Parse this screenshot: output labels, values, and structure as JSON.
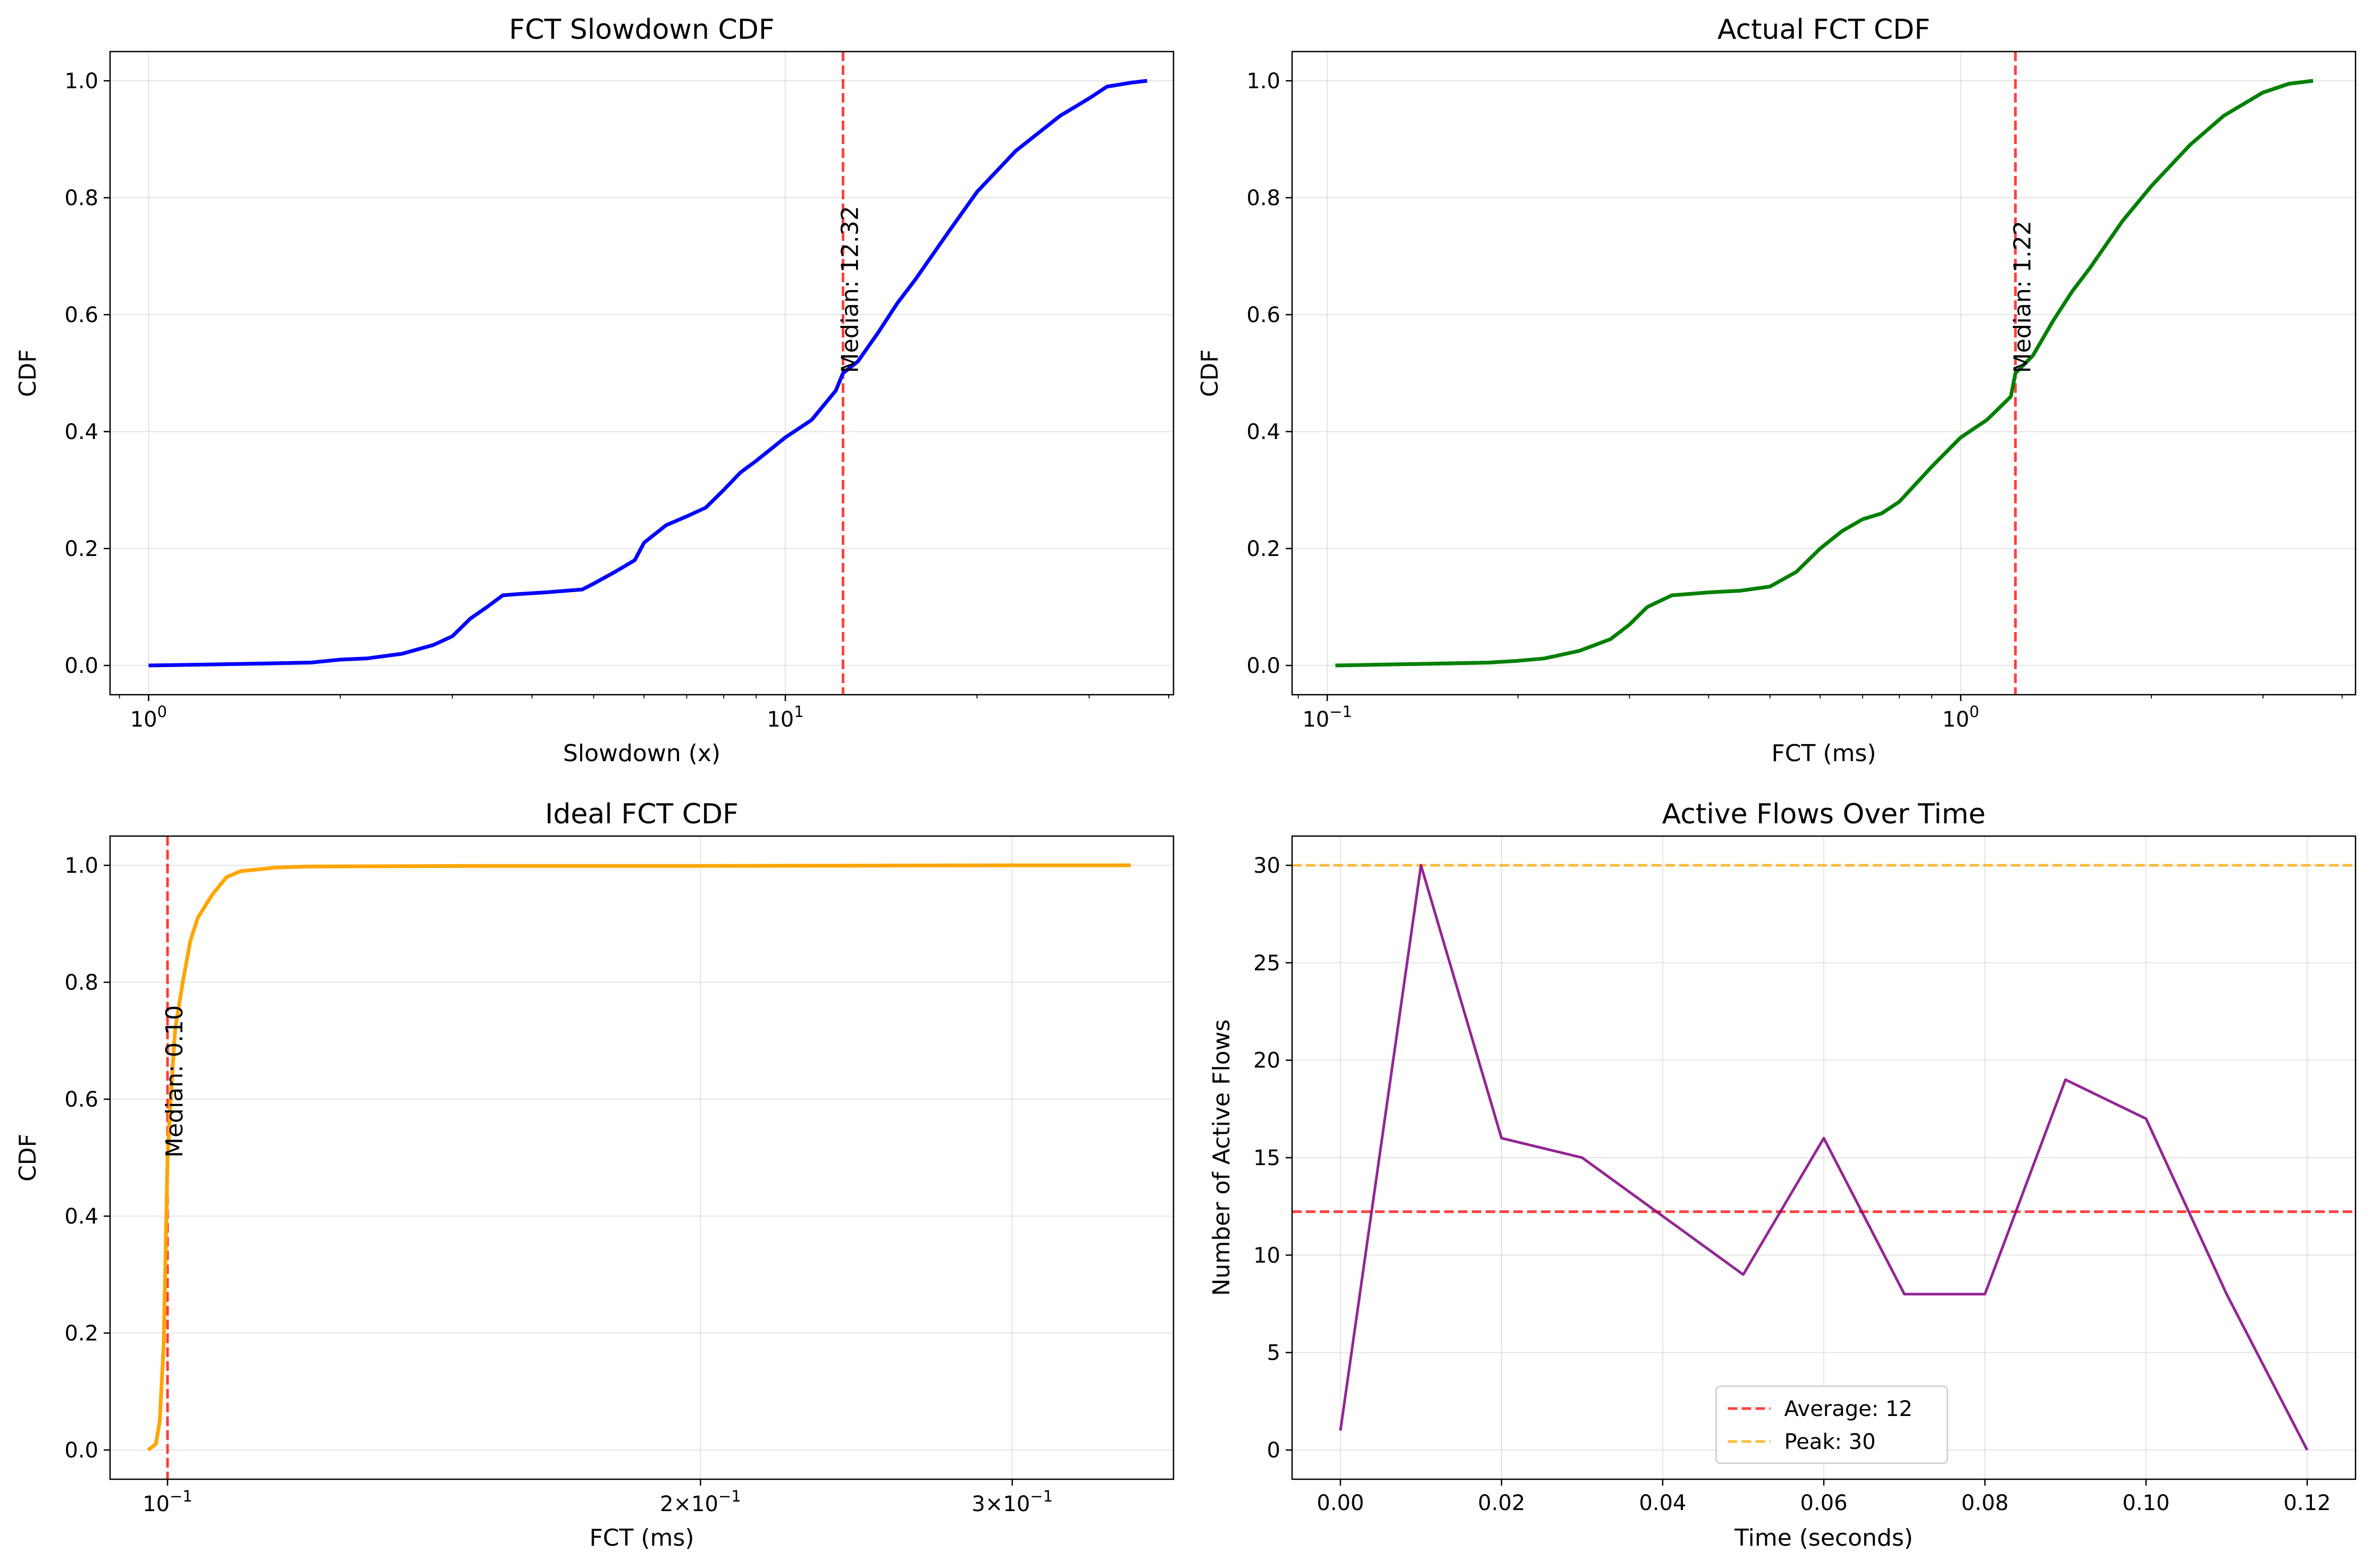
{
  "chart_data": [
    {
      "id": "slowdown",
      "type": "line",
      "title": "FCT Slowdown CDF",
      "xlabel": "Slowdown (x)",
      "ylabel": "CDF",
      "xscale": "log",
      "xlim": [
        0.87,
        40.7
      ],
      "ylim": [
        -0.05,
        1.05
      ],
      "grid": true,
      "x_ticks": [
        {
          "value": 1,
          "base": "10",
          "exp": "0"
        },
        {
          "value": 10,
          "base": "10",
          "exp": "1"
        }
      ],
      "y_ticks": [
        "0.0",
        "0.2",
        "0.4",
        "0.6",
        "0.8",
        "1.0"
      ],
      "series": [
        {
          "color": "#0000ff",
          "x": [
            1.0,
            1.3,
            1.8,
            2.0,
            2.2,
            2.5,
            2.8,
            3.0,
            3.2,
            3.4,
            3.6,
            3.8,
            4.2,
            4.8,
            5.0,
            5.4,
            5.8,
            6.0,
            6.5,
            7.0,
            7.5,
            8.0,
            8.5,
            9.0,
            10.0,
            11.0,
            12.0,
            12.32,
            13.0,
            14.0,
            15.0,
            16.0,
            18.0,
            20.0,
            23.0,
            27.0,
            30.0,
            32.0,
            35.0,
            37.0
          ],
          "y": [
            0.0,
            0.002,
            0.005,
            0.01,
            0.012,
            0.02,
            0.035,
            0.05,
            0.08,
            0.1,
            0.12,
            0.122,
            0.125,
            0.13,
            0.14,
            0.16,
            0.18,
            0.21,
            0.24,
            0.255,
            0.27,
            0.3,
            0.33,
            0.35,
            0.39,
            0.42,
            0.47,
            0.5,
            0.52,
            0.57,
            0.62,
            0.66,
            0.74,
            0.81,
            0.88,
            0.94,
            0.97,
            0.99,
            0.997,
            1.0
          ]
        }
      ],
      "vline": {
        "x": 12.32,
        "color": "#ff0000"
      },
      "annotation": "Median: 12.32"
    },
    {
      "id": "actual",
      "type": "line",
      "title": "Actual FCT CDF",
      "xlabel": "FCT (ms)",
      "ylabel": "CDF",
      "xscale": "log",
      "xlim": [
        0.088,
        4.2
      ],
      "ylim": [
        -0.05,
        1.05
      ],
      "grid": true,
      "x_ticks": [
        {
          "value": 0.1,
          "base": "10",
          "exp": "−1"
        },
        {
          "value": 1,
          "base": "10",
          "exp": "0"
        }
      ],
      "y_ticks": [
        "0.0",
        "0.2",
        "0.4",
        "0.6",
        "0.8",
        "1.0"
      ],
      "series": [
        {
          "color": "#008000",
          "x": [
            0.103,
            0.13,
            0.18,
            0.2,
            0.22,
            0.25,
            0.28,
            0.3,
            0.32,
            0.35,
            0.37,
            0.4,
            0.45,
            0.5,
            0.55,
            0.6,
            0.65,
            0.7,
            0.75,
            0.8,
            0.9,
            1.0,
            1.1,
            1.2,
            1.22,
            1.3,
            1.4,
            1.5,
            1.6,
            1.8,
            2.0,
            2.3,
            2.6,
            3.0,
            3.3,
            3.6
          ],
          "y": [
            0.0,
            0.002,
            0.005,
            0.008,
            0.012,
            0.025,
            0.045,
            0.07,
            0.1,
            0.12,
            0.122,
            0.125,
            0.128,
            0.135,
            0.16,
            0.2,
            0.23,
            0.25,
            0.26,
            0.28,
            0.34,
            0.39,
            0.42,
            0.46,
            0.5,
            0.53,
            0.59,
            0.64,
            0.68,
            0.76,
            0.82,
            0.89,
            0.94,
            0.98,
            0.995,
            1.0
          ]
        }
      ],
      "vline": {
        "x": 1.22,
        "color": "#ff0000"
      },
      "annotation": "Median: 1.22"
    },
    {
      "id": "ideal",
      "type": "line",
      "title": "Ideal FCT CDF",
      "xlabel": "FCT (ms)",
      "ylabel": "CDF",
      "xscale": "log",
      "xlim": [
        0.0928,
        0.37
      ],
      "ylim": [
        -0.05,
        1.05
      ],
      "grid": true,
      "x_ticks": [
        {
          "value": 0.1,
          "base": "10",
          "exp": "−1",
          "prefix": ""
        },
        {
          "value": 0.2,
          "base": "10",
          "exp": "−1",
          "prefix": "2×"
        },
        {
          "value": 0.3,
          "base": "10",
          "exp": "−1",
          "prefix": "3×"
        }
      ],
      "y_ticks": [
        "0.0",
        "0.2",
        "0.4",
        "0.6",
        "0.8",
        "1.0"
      ],
      "series": [
        {
          "color": "#ffa500",
          "x": [
            0.0975,
            0.0985,
            0.099,
            0.0995,
            0.1,
            0.1005,
            0.101,
            0.102,
            0.103,
            0.104,
            0.106,
            0.108,
            0.11,
            0.115,
            0.12,
            0.15,
            0.2,
            0.3,
            0.35
          ],
          "y": [
            0.0,
            0.01,
            0.05,
            0.18,
            0.5,
            0.62,
            0.72,
            0.8,
            0.87,
            0.91,
            0.95,
            0.98,
            0.99,
            0.996,
            0.998,
            0.999,
            0.999,
            1.0,
            1.0
          ]
        }
      ],
      "vline": {
        "x": 0.1,
        "color": "#ff0000"
      },
      "annotation": "Median: 0.10"
    },
    {
      "id": "active",
      "type": "line",
      "title": "Active Flows Over Time",
      "xlabel": "Time (seconds)",
      "ylabel": "Number of Active Flows",
      "xscale": "linear",
      "xlim": [
        -0.006,
        0.126
      ],
      "ylim": [
        -1.5,
        31.5
      ],
      "grid": true,
      "x_ticks": [
        {
          "value": 0.0,
          "label": "0.00"
        },
        {
          "value": 0.02,
          "label": "0.02"
        },
        {
          "value": 0.04,
          "label": "0.04"
        },
        {
          "value": 0.06,
          "label": "0.06"
        },
        {
          "value": 0.08,
          "label": "0.08"
        },
        {
          "value": 0.1,
          "label": "0.10"
        },
        {
          "value": 0.12,
          "label": "0.12"
        }
      ],
      "y_ticks": [
        "0",
        "5",
        "10",
        "15",
        "20",
        "25",
        "30"
      ],
      "series": [
        {
          "color": "#800080",
          "x": [
            0.0,
            0.01,
            0.02,
            0.03,
            0.04,
            0.05,
            0.06,
            0.07,
            0.08,
            0.09,
            0.1,
            0.11,
            0.12
          ],
          "y": [
            1,
            30,
            16,
            15,
            12,
            9,
            16,
            8,
            8,
            19,
            17,
            8,
            0
          ]
        }
      ],
      "hlines": [
        {
          "y": 12.23,
          "color": "#ff0000",
          "label": "Average: 12"
        },
        {
          "y": 30,
          "color": "#ffa500",
          "label": "Peak: 30"
        }
      ],
      "legend": {
        "position": "lower-center"
      }
    }
  ]
}
